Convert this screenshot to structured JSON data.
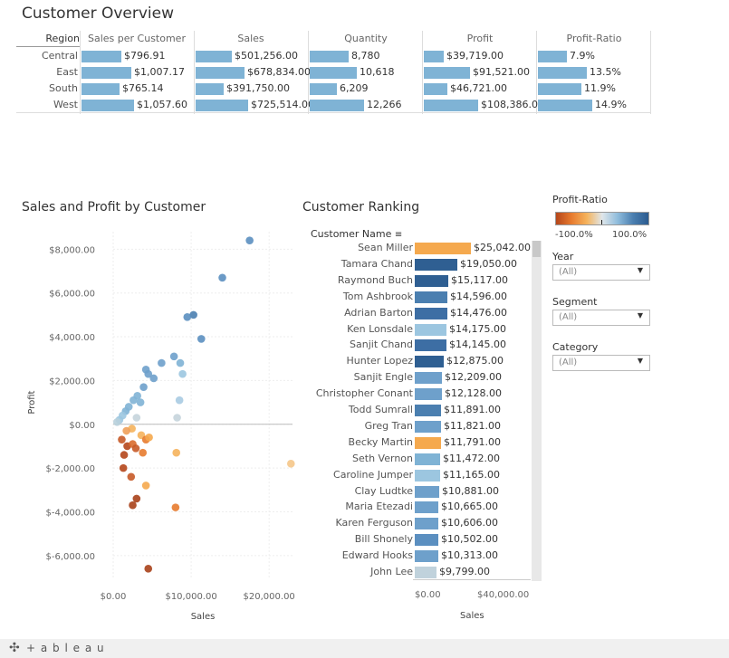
{
  "overview": {
    "title": "Customer Overview",
    "row_header": "Region",
    "columns": [
      "Sales per Customer",
      "Sales",
      "Quantity",
      "Profit",
      "Profit-Ratio"
    ],
    "rows": [
      {
        "region": "Central",
        "values": [
          "$796.91",
          "$501,256.00",
          "8,780",
          "$39,719.00",
          "7.9%"
        ],
        "nums": [
          796.91,
          501256,
          8780,
          39719,
          7.9
        ]
      },
      {
        "region": "East",
        "values": [
          "$1,007.17",
          "$678,834.00",
          "10,618",
          "$91,521.00",
          "13.5%"
        ],
        "nums": [
          1007.17,
          678834,
          10618,
          91521,
          13.5
        ]
      },
      {
        "region": "South",
        "values": [
          "$765.14",
          "$391,750.00",
          "6,209",
          "$46,721.00",
          "11.9%"
        ],
        "nums": [
          765.14,
          391750,
          6209,
          46721,
          11.9
        ]
      },
      {
        "region": "West",
        "values": [
          "$1,057.60",
          "$725,514.00",
          "12,266",
          "$108,386.00",
          "14.9%"
        ],
        "nums": [
          1057.6,
          725514,
          12266,
          108386,
          14.9
        ]
      }
    ],
    "bar_color": "#7fb3d5"
  },
  "scatter": {
    "title": "Sales and Profit by Customer",
    "xlabel": "Sales",
    "ylabel": "Profit",
    "x_ticks": [
      "$0.00",
      "$10,000.00",
      "$20,000.00"
    ],
    "y_ticks": [
      "$8,000.00",
      "$6,000.00",
      "$4,000.00",
      "$2,000.00",
      "$0.00",
      "$-2,000.00",
      "$-4,000.00",
      "$-6,000.00"
    ]
  },
  "ranking": {
    "title": "Customer Ranking",
    "column_header": "Customer Name",
    "xlabel": "Sales",
    "x_ticks": [
      "$0.00",
      "$40,000.00"
    ],
    "customers": [
      {
        "name": "Sean Miller",
        "label": "$25,042.00",
        "value": 25042,
        "color": "#f5a94e"
      },
      {
        "name": "Tamara Chand",
        "label": "$19,050.00",
        "value": 19050,
        "color": "#2f5f92"
      },
      {
        "name": "Raymond Buch",
        "label": "$15,117.00",
        "value": 15117,
        "color": "#2f5f92"
      },
      {
        "name": "Tom Ashbrook",
        "label": "$14,596.00",
        "value": 14596,
        "color": "#4b7fb0"
      },
      {
        "name": "Adrian Barton",
        "label": "$14,476.00",
        "value": 14476,
        "color": "#3d6ea4"
      },
      {
        "name": "Ken Lonsdale",
        "label": "$14,175.00",
        "value": 14175,
        "color": "#9cc6e0"
      },
      {
        "name": "Sanjit Chand",
        "label": "$14,145.00",
        "value": 14145,
        "color": "#3d6ea4"
      },
      {
        "name": "Hunter Lopez",
        "label": "$12,875.00",
        "value": 12875,
        "color": "#2f5f92"
      },
      {
        "name": "Sanjit Engle",
        "label": "$12,209.00",
        "value": 12209,
        "color": "#6ea0cb"
      },
      {
        "name": "Christopher Conant",
        "label": "$12,128.00",
        "value": 12128,
        "color": "#6ea0cb"
      },
      {
        "name": "Todd Sumrall",
        "label": "$11,891.00",
        "value": 11891,
        "color": "#4b7fb0"
      },
      {
        "name": "Greg Tran",
        "label": "$11,821.00",
        "value": 11821,
        "color": "#6ea0cb"
      },
      {
        "name": "Becky Martin",
        "label": "$11,791.00",
        "value": 11791,
        "color": "#f5a94e"
      },
      {
        "name": "Seth Vernon",
        "label": "$11,472.00",
        "value": 11472,
        "color": "#7fb3d5"
      },
      {
        "name": "Caroline Jumper",
        "label": "$11,165.00",
        "value": 11165,
        "color": "#9cc6e0"
      },
      {
        "name": "Clay Ludtke",
        "label": "$10,881.00",
        "value": 10881,
        "color": "#6ea0cb"
      },
      {
        "name": "Maria Etezadi",
        "label": "$10,665.00",
        "value": 10665,
        "color": "#6ea0cb"
      },
      {
        "name": "Karen Ferguson",
        "label": "$10,606.00",
        "value": 10606,
        "color": "#6ea0cb"
      },
      {
        "name": "Bill Shonely",
        "label": "$10,502.00",
        "value": 10502,
        "color": "#5b8fc0"
      },
      {
        "name": "Edward Hooks",
        "label": "$10,313.00",
        "value": 10313,
        "color": "#6ea0cb"
      },
      {
        "name": "John Lee",
        "label": "$9,799.00",
        "value": 9799,
        "color": "#c0d2dc"
      }
    ]
  },
  "legend": {
    "title": "Profit-Ratio",
    "min_label": "-100.0%",
    "max_label": "100.0%",
    "colors": [
      "#b5461b",
      "#e77b2f",
      "#f5b35c",
      "#dfe6ea",
      "#8fbcdc",
      "#4b7fb0",
      "#2b5b8f"
    ]
  },
  "filters": [
    {
      "title": "Year",
      "value": "(All)"
    },
    {
      "title": "Segment",
      "value": "(All)"
    },
    {
      "title": "Category",
      "value": "(All)"
    }
  ],
  "footer": {
    "logo_text": "+ a b l e a u"
  },
  "chart_data": [
    {
      "type": "bar",
      "title": "Customer Overview",
      "categories": [
        "Central",
        "East",
        "South",
        "West"
      ],
      "series": [
        {
          "name": "Sales per Customer",
          "values": [
            796.91,
            1007.17,
            765.14,
            1057.6
          ]
        },
        {
          "name": "Sales",
          "values": [
            501256,
            678834,
            391750,
            725514
          ]
        },
        {
          "name": "Quantity",
          "values": [
            8780,
            10618,
            6209,
            12266
          ]
        },
        {
          "name": "Profit",
          "values": [
            39719,
            91521,
            46721,
            108386
          ]
        },
        {
          "name": "Profit-Ratio",
          "values": [
            7.9,
            13.5,
            11.9,
            14.9
          ]
        }
      ]
    },
    {
      "type": "scatter",
      "title": "Sales and Profit by Customer",
      "xlabel": "Sales",
      "ylabel": "Profit",
      "xlim": [
        0,
        23000
      ],
      "ylim": [
        -7000,
        8800
      ],
      "points": [
        [
          17500,
          8400,
          "#5b8fc0"
        ],
        [
          14000,
          6700,
          "#5b8fc0"
        ],
        [
          10300,
          5000,
          "#4b7fb0"
        ],
        [
          9500,
          4900,
          "#5b8fc0"
        ],
        [
          11300,
          3900,
          "#5b8fc0"
        ],
        [
          7800,
          3100,
          "#6ea0cb"
        ],
        [
          8600,
          2800,
          "#7fb3d5"
        ],
        [
          6200,
          2800,
          "#6ea0cb"
        ],
        [
          8900,
          2300,
          "#9cc6e0"
        ],
        [
          4200,
          2500,
          "#6ea0cb"
        ],
        [
          4500,
          2300,
          "#6ea0cb"
        ],
        [
          5200,
          2100,
          "#6ea0cb"
        ],
        [
          3900,
          1700,
          "#6ea0cb"
        ],
        [
          3100,
          1300,
          "#7fb3d5"
        ],
        [
          2600,
          1100,
          "#7fb3d5"
        ],
        [
          3500,
          1000,
          "#7fb3d5"
        ],
        [
          8500,
          1100,
          "#a8cbe2"
        ],
        [
          2000,
          800,
          "#7fb3d5"
        ],
        [
          1600,
          600,
          "#7fb3d5"
        ],
        [
          1200,
          400,
          "#9cc6e0"
        ],
        [
          800,
          200,
          "#9cc6e0"
        ],
        [
          500,
          100,
          "#b8d0dc"
        ],
        [
          8200,
          300,
          "#c5d4dc"
        ],
        [
          3000,
          300,
          "#c5d4dc"
        ],
        [
          2400,
          -200,
          "#f5b35c"
        ],
        [
          1700,
          -300,
          "#f0a05a"
        ],
        [
          3600,
          -500,
          "#f5b35c"
        ],
        [
          4200,
          -700,
          "#e77b2f"
        ],
        [
          4600,
          -600,
          "#f5a94e"
        ],
        [
          1100,
          -700,
          "#c75a28"
        ],
        [
          1800,
          -1000,
          "#b5461b"
        ],
        [
          2500,
          -900,
          "#d96b2e"
        ],
        [
          2900,
          -1100,
          "#c75a28"
        ],
        [
          1400,
          -1400,
          "#b5461b"
        ],
        [
          3800,
          -1300,
          "#e77b2f"
        ],
        [
          8100,
          -1300,
          "#f5b35c"
        ],
        [
          22800,
          -1800,
          "#f5c78a"
        ],
        [
          1300,
          -2000,
          "#b5461b"
        ],
        [
          2300,
          -2400,
          "#c75a28"
        ],
        [
          4200,
          -2800,
          "#f5a94e"
        ],
        [
          3000,
          -3400,
          "#a8411a"
        ],
        [
          2500,
          -3700,
          "#a8411a"
        ],
        [
          8000,
          -3800,
          "#e77b2f"
        ],
        [
          4500,
          -6600,
          "#a8411a"
        ]
      ]
    },
    {
      "type": "bar",
      "title": "Customer Ranking",
      "xlabel": "Sales",
      "categories": [
        "Sean Miller",
        "Tamara Chand",
        "Raymond Buch",
        "Tom Ashbrook",
        "Adrian Barton",
        "Ken Lonsdale",
        "Sanjit Chand",
        "Hunter Lopez",
        "Sanjit Engle",
        "Christopher Conant",
        "Todd Sumrall",
        "Greg Tran",
        "Becky Martin",
        "Seth Vernon",
        "Caroline Jumper",
        "Clay Ludtke",
        "Maria Etezadi",
        "Karen Ferguson",
        "Bill Shonely",
        "Edward Hooks",
        "John Lee"
      ],
      "values": [
        25042,
        19050,
        15117,
        14596,
        14476,
        14175,
        14145,
        12875,
        12209,
        12128,
        11891,
        11821,
        11791,
        11472,
        11165,
        10881,
        10665,
        10606,
        10502,
        10313,
        9799
      ]
    }
  ]
}
